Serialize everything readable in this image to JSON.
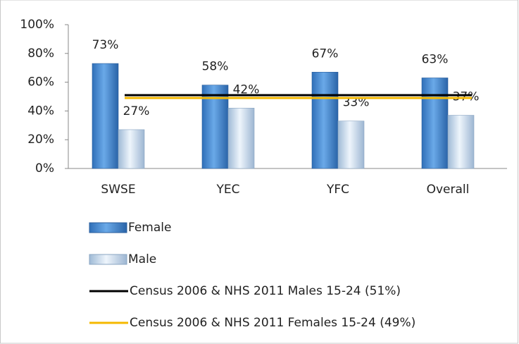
{
  "chart_data": {
    "type": "bar",
    "categories": [
      "SWSE",
      "YEC",
      "YFC",
      "Overall"
    ],
    "series": [
      {
        "name": "Female",
        "color": "#4a8fd6",
        "values": [
          73,
          58,
          67,
          63
        ],
        "value_labels": [
          "73%",
          "58%",
          "67%",
          "63%"
        ]
      },
      {
        "name": "Male",
        "color": "#c5dcf2",
        "values": [
          27,
          42,
          33,
          37
        ],
        "value_labels": [
          "27%",
          "42%",
          "33%",
          "37%"
        ]
      }
    ],
    "reference_lines": [
      {
        "name": "Census 2006 & NHS 2011  Males 15-24 (51%)",
        "color": "#000000",
        "value": 51
      },
      {
        "name": "Census 2006 & NHS 2011 Females 15-24 (49%)",
        "color": "#f5b800",
        "value": 49
      }
    ],
    "ylim": [
      0,
      100
    ],
    "yticks": [
      {
        "value": 0,
        "label": "0%"
      },
      {
        "value": 20,
        "label": "20%"
      },
      {
        "value": 40,
        "label": "40%"
      },
      {
        "value": 60,
        "label": "60%"
      },
      {
        "value": 80,
        "label": "80%"
      },
      {
        "value": 100,
        "label": "100%"
      }
    ]
  }
}
